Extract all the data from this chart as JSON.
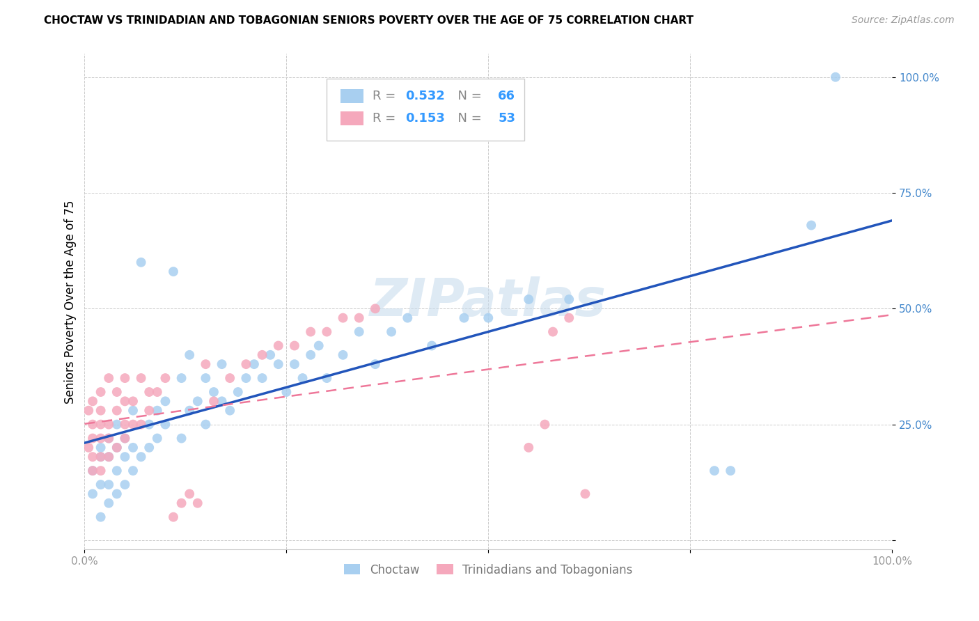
{
  "title": "CHOCTAW VS TRINIDADIAN AND TOBAGONIAN SENIORS POVERTY OVER THE AGE OF 75 CORRELATION CHART",
  "source": "Source: ZipAtlas.com",
  "ylabel": "Seniors Poverty Over the Age of 75",
  "xlim": [
    0,
    1.0
  ],
  "ylim": [
    -0.02,
    1.05
  ],
  "xticks": [
    0.0,
    0.25,
    0.5,
    0.75,
    1.0
  ],
  "xticklabels": [
    "0.0%",
    "",
    "",
    "",
    "100.0%"
  ],
  "yticks": [
    0.0,
    0.25,
    0.5,
    0.75,
    1.0
  ],
  "yticklabels": [
    "",
    "25.0%",
    "50.0%",
    "75.0%",
    "100.0%"
  ],
  "choctaw_R": 0.532,
  "choctaw_N": 66,
  "trini_R": 0.153,
  "trini_N": 53,
  "choctaw_color": "#A8CFF0",
  "choctaw_line_color": "#2255BB",
  "trini_color": "#F5A8BC",
  "trini_line_color": "#EE7799",
  "grid_color": "#CCCCCC",
  "choctaw_x": [
    0.01,
    0.01,
    0.02,
    0.02,
    0.02,
    0.02,
    0.03,
    0.03,
    0.03,
    0.03,
    0.04,
    0.04,
    0.04,
    0.04,
    0.05,
    0.05,
    0.05,
    0.06,
    0.06,
    0.06,
    0.07,
    0.07,
    0.08,
    0.08,
    0.09,
    0.09,
    0.1,
    0.1,
    0.11,
    0.12,
    0.12,
    0.13,
    0.13,
    0.14,
    0.15,
    0.15,
    0.16,
    0.17,
    0.17,
    0.18,
    0.19,
    0.2,
    0.21,
    0.22,
    0.23,
    0.24,
    0.25,
    0.26,
    0.27,
    0.28,
    0.29,
    0.3,
    0.32,
    0.34,
    0.36,
    0.38,
    0.4,
    0.43,
    0.47,
    0.5,
    0.55,
    0.6,
    0.78,
    0.8,
    0.9,
    0.93
  ],
  "choctaw_y": [
    0.1,
    0.15,
    0.05,
    0.12,
    0.18,
    0.2,
    0.08,
    0.12,
    0.18,
    0.22,
    0.1,
    0.15,
    0.2,
    0.25,
    0.12,
    0.18,
    0.22,
    0.15,
    0.2,
    0.28,
    0.18,
    0.6,
    0.2,
    0.25,
    0.22,
    0.28,
    0.25,
    0.3,
    0.58,
    0.22,
    0.35,
    0.28,
    0.4,
    0.3,
    0.25,
    0.35,
    0.32,
    0.3,
    0.38,
    0.28,
    0.32,
    0.35,
    0.38,
    0.35,
    0.4,
    0.38,
    0.32,
    0.38,
    0.35,
    0.4,
    0.42,
    0.35,
    0.4,
    0.45,
    0.38,
    0.45,
    0.48,
    0.42,
    0.48,
    0.48,
    0.52,
    0.52,
    0.15,
    0.15,
    0.68,
    1.0
  ],
  "trini_x": [
    0.005,
    0.005,
    0.01,
    0.01,
    0.01,
    0.01,
    0.01,
    0.02,
    0.02,
    0.02,
    0.02,
    0.02,
    0.02,
    0.03,
    0.03,
    0.03,
    0.03,
    0.04,
    0.04,
    0.04,
    0.05,
    0.05,
    0.05,
    0.05,
    0.06,
    0.06,
    0.07,
    0.07,
    0.08,
    0.08,
    0.09,
    0.1,
    0.11,
    0.12,
    0.13,
    0.14,
    0.15,
    0.16,
    0.18,
    0.2,
    0.22,
    0.24,
    0.26,
    0.28,
    0.3,
    0.32,
    0.34,
    0.36,
    0.55,
    0.57,
    0.58,
    0.6,
    0.62
  ],
  "trini_y": [
    0.2,
    0.28,
    0.15,
    0.18,
    0.22,
    0.25,
    0.3,
    0.15,
    0.18,
    0.22,
    0.25,
    0.28,
    0.32,
    0.18,
    0.22,
    0.25,
    0.35,
    0.2,
    0.28,
    0.32,
    0.22,
    0.25,
    0.3,
    0.35,
    0.25,
    0.3,
    0.25,
    0.35,
    0.28,
    0.32,
    0.32,
    0.35,
    0.05,
    0.08,
    0.1,
    0.08,
    0.38,
    0.3,
    0.35,
    0.38,
    0.4,
    0.42,
    0.42,
    0.45,
    0.45,
    0.48,
    0.48,
    0.5,
    0.2,
    0.25,
    0.45,
    0.48,
    0.1
  ]
}
